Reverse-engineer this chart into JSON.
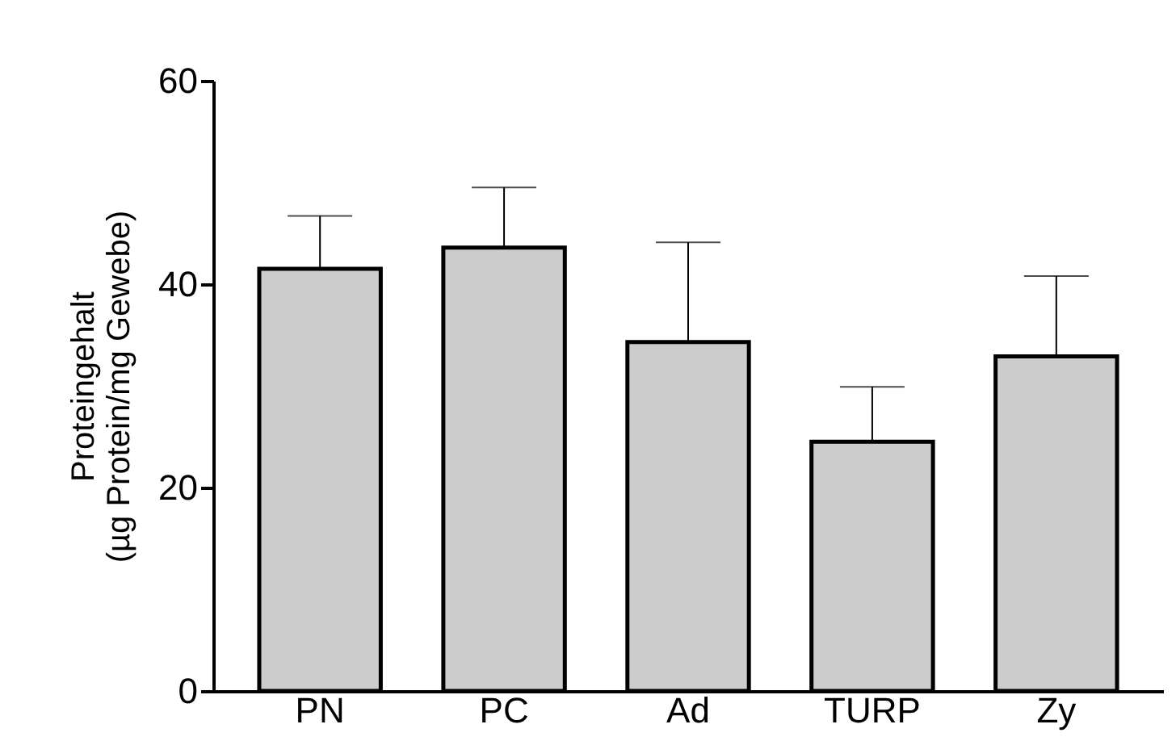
{
  "chart_data": {
    "type": "bar",
    "ylabel": "Proteingehalt\n(µg Protein/mg Gewebe)",
    "categories": [
      "PN",
      "PC",
      "Ad",
      "TURP",
      "Zy"
    ],
    "values": [
      41.5,
      43.6,
      34.3,
      24.5,
      32.9
    ],
    "errors": [
      [
        41.5,
        46.7
      ],
      [
        43.6,
        49.5
      ],
      [
        34.3,
        44.1
      ],
      [
        24.5,
        29.9
      ],
      [
        32.9,
        40.8
      ]
    ],
    "color": "#cccccc",
    "ylim": [
      0,
      60
    ],
    "yticks": [
      0,
      20,
      40,
      60
    ],
    "grid": false
  }
}
